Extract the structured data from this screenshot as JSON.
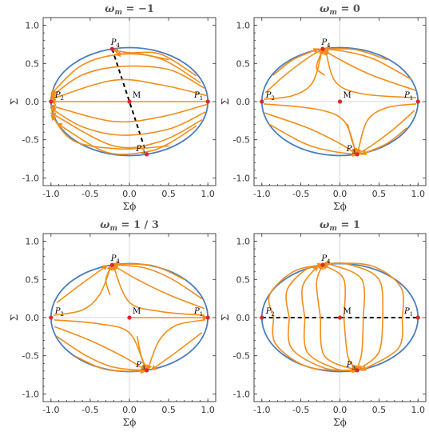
{
  "colors": {
    "boundary": "#4a7dbf",
    "flow": "#f28d1b",
    "point": "#e0262a",
    "dashed": "#000000"
  },
  "axes": {
    "xlabel": "Σϕ",
    "ylabel": "Σ",
    "xticks": [
      "-1.0",
      "-0.5",
      "0.0",
      "0.5",
      "1.0"
    ],
    "yticks": [
      "-1.0",
      "-0.5",
      "0.0",
      "0.5",
      "1.0"
    ],
    "xlim": [
      -1.1,
      1.1
    ],
    "ylim": [
      -1.1,
      1.1
    ]
  },
  "chart_data": [
    {
      "type": "line",
      "title": "ω_m = −1",
      "title_main": "ω",
      "title_sub": "m",
      "title_value": " = −1",
      "xlabel": "Σϕ",
      "ylabel": "Σ",
      "xlim": [
        -1.1,
        1.1
      ],
      "ylim": [
        -1.1,
        1.1
      ],
      "boundary": {
        "a": 1.0,
        "b": 0.707
      },
      "points": [
        {
          "name": "P",
          "sub": "1",
          "x": 1.0,
          "y": 0.0
        },
        {
          "name": "P",
          "sub": "2",
          "x": -1.0,
          "y": 0.0
        },
        {
          "name": "P",
          "sub": "3",
          "x": 0.22,
          "y": -0.69
        },
        {
          "name": "P",
          "sub": "4",
          "x": -0.22,
          "y": 0.69
        },
        {
          "name": "M",
          "sub": "",
          "x": 0.0,
          "y": 0.0
        }
      ],
      "dashed": [
        [
          -0.22,
          0.69
        ],
        [
          0.22,
          -0.69
        ]
      ],
      "trajectories": [
        [
          [
            0.98,
            0.0
          ],
          [
            0.5,
            0.0
          ],
          [
            -0.98,
            0.0
          ]
        ],
        [
          [
            0.98,
            0.08
          ],
          [
            0.4,
            0.22
          ],
          [
            -0.2,
            0.28
          ],
          [
            -0.98,
            0.04
          ]
        ],
        [
          [
            0.95,
            0.18
          ],
          [
            0.5,
            0.42
          ],
          [
            -0.1,
            0.46
          ],
          [
            -0.6,
            0.35
          ],
          [
            -0.98,
            0.08
          ]
        ],
        [
          [
            0.9,
            0.25
          ],
          [
            0.4,
            0.56
          ],
          [
            -0.1,
            0.62
          ],
          [
            -0.6,
            0.48
          ],
          [
            -0.98,
            0.12
          ]
        ],
        [
          [
            0.85,
            0.34
          ],
          [
            0.4,
            0.62
          ],
          [
            0.0,
            0.64
          ],
          [
            -0.18,
            0.67
          ]
        ],
        [
          [
            0.5,
            0.55
          ],
          [
            0.1,
            0.63
          ],
          [
            -0.15,
            0.62
          ]
        ],
        [
          [
            0.98,
            -0.04
          ],
          [
            0.4,
            -0.2
          ],
          [
            -0.2,
            -0.26
          ],
          [
            -0.98,
            -0.06
          ]
        ],
        [
          [
            0.96,
            -0.14
          ],
          [
            0.5,
            -0.36
          ],
          [
            -0.1,
            -0.44
          ],
          [
            -0.6,
            -0.33
          ],
          [
            -0.98,
            -0.1
          ]
        ],
        [
          [
            0.92,
            -0.24
          ],
          [
            0.4,
            -0.52
          ],
          [
            -0.2,
            -0.58
          ],
          [
            -0.98,
            -0.16
          ]
        ],
        [
          [
            0.5,
            -0.58
          ],
          [
            -0.1,
            -0.62
          ],
          [
            -0.7,
            -0.52
          ],
          [
            -0.98,
            -0.2
          ]
        ],
        [
          [
            0.85,
            -0.32
          ],
          [
            0.5,
            -0.55
          ],
          [
            0.2,
            -0.66
          ],
          [
            -0.3,
            -0.66
          ],
          [
            -0.9,
            -0.3
          ]
        ]
      ]
    },
    {
      "type": "line",
      "title": "ω_m = 0",
      "title_main": "ω",
      "title_sub": "m",
      "title_value": " = 0",
      "xlabel": "Σϕ",
      "ylabel": "Σ",
      "xlim": [
        -1.1,
        1.1
      ],
      "ylim": [
        -1.1,
        1.1
      ],
      "boundary": {
        "a": 1.0,
        "b": 0.707
      },
      "points": [
        {
          "name": "P",
          "sub": "1",
          "x": 1.0,
          "y": 0.0
        },
        {
          "name": "P",
          "sub": "2",
          "x": -1.0,
          "y": 0.0
        },
        {
          "name": "P",
          "sub": "3",
          "x": 0.22,
          "y": -0.69
        },
        {
          "name": "P",
          "sub": "4",
          "x": -0.22,
          "y": 0.69
        },
        {
          "name": "M",
          "sub": "",
          "x": 0.0,
          "y": 0.0
        }
      ],
      "dashed": [],
      "trajectories": [
        [
          [
            0.97,
            0.05
          ],
          [
            0.3,
            0.1
          ],
          [
            -0.05,
            0.25
          ],
          [
            -0.18,
            0.65
          ]
        ],
        [
          [
            0.96,
            0.15
          ],
          [
            0.4,
            0.35
          ],
          [
            0.0,
            0.55
          ],
          [
            -0.2,
            0.67
          ]
        ],
        [
          [
            0.9,
            0.3
          ],
          [
            0.45,
            0.55
          ],
          [
            0.1,
            0.65
          ],
          [
            -0.18,
            0.69
          ]
        ],
        [
          [
            0.6,
            0.55
          ],
          [
            0.2,
            0.68
          ],
          [
            -0.18,
            0.69
          ]
        ],
        [
          [
            -0.97,
            0.03
          ],
          [
            -0.6,
            0.08
          ],
          [
            -0.35,
            0.25
          ],
          [
            -0.23,
            0.66
          ]
        ],
        [
          [
            -0.95,
            0.12
          ],
          [
            -0.7,
            0.35
          ],
          [
            -0.4,
            0.58
          ],
          [
            -0.23,
            0.68
          ]
        ],
        [
          [
            -0.85,
            0.35
          ],
          [
            -0.6,
            0.55
          ],
          [
            -0.3,
            0.68
          ]
        ],
        [
          [
            -0.2,
            0.35
          ],
          [
            -0.3,
            0.45
          ],
          [
            -0.22,
            0.68
          ]
        ],
        [
          [
            -0.97,
            -0.03
          ],
          [
            -0.3,
            -0.1
          ],
          [
            0.05,
            -0.25
          ],
          [
            0.2,
            -0.65
          ]
        ],
        [
          [
            -0.96,
            -0.15
          ],
          [
            -0.4,
            -0.35
          ],
          [
            0.0,
            -0.55
          ],
          [
            0.2,
            -0.68
          ]
        ],
        [
          [
            -0.9,
            -0.3
          ],
          [
            -0.45,
            -0.55
          ],
          [
            -0.1,
            -0.65
          ],
          [
            0.2,
            -0.69
          ]
        ],
        [
          [
            0.97,
            -0.03
          ],
          [
            0.6,
            -0.08
          ],
          [
            0.35,
            -0.25
          ],
          [
            0.23,
            -0.66
          ]
        ],
        [
          [
            0.95,
            -0.12
          ],
          [
            0.7,
            -0.35
          ],
          [
            0.4,
            -0.58
          ],
          [
            0.23,
            -0.68
          ]
        ],
        [
          [
            0.85,
            -0.35
          ],
          [
            0.6,
            -0.55
          ],
          [
            0.3,
            -0.68
          ]
        ],
        [
          [
            0.1,
            -0.3
          ],
          [
            0.15,
            -0.5
          ],
          [
            0.21,
            -0.67
          ]
        ]
      ]
    },
    {
      "type": "line",
      "title": "ω_m = 1 / 3",
      "title_main": "ω",
      "title_sub": "m",
      "title_value": " = 1 / 3",
      "xlabel": "Σϕ",
      "ylabel": "Σ",
      "xlim": [
        -1.1,
        1.1
      ],
      "ylim": [
        -1.1,
        1.1
      ],
      "boundary": {
        "a": 1.0,
        "b": 0.707
      },
      "points": [
        {
          "name": "P",
          "sub": "1",
          "x": 1.0,
          "y": 0.0
        },
        {
          "name": "P",
          "sub": "2",
          "x": -1.0,
          "y": 0.0
        },
        {
          "name": "P",
          "sub": "3",
          "x": 0.22,
          "y": -0.69
        },
        {
          "name": "P",
          "sub": "4",
          "x": -0.22,
          "y": 0.69
        },
        {
          "name": "M",
          "sub": "",
          "x": 0.0,
          "y": 0.0
        }
      ],
      "dashed": [],
      "trajectories": [
        [
          [
            0.95,
            0.03
          ],
          [
            0.4,
            0.08
          ],
          [
            0.0,
            0.2
          ],
          [
            -0.2,
            0.66
          ]
        ],
        [
          [
            0.95,
            0.12
          ],
          [
            0.5,
            0.3
          ],
          [
            0.1,
            0.5
          ],
          [
            -0.2,
            0.68
          ]
        ],
        [
          [
            0.92,
            0.25
          ],
          [
            0.55,
            0.5
          ],
          [
            0.2,
            0.65
          ],
          [
            -0.18,
            0.69
          ]
        ],
        [
          [
            0.7,
            0.5
          ],
          [
            0.3,
            0.68
          ],
          [
            -0.18,
            0.7
          ]
        ],
        [
          [
            -0.96,
            0.03
          ],
          [
            -0.6,
            0.1
          ],
          [
            -0.38,
            0.3
          ],
          [
            -0.24,
            0.66
          ]
        ],
        [
          [
            -0.92,
            0.2
          ],
          [
            -0.6,
            0.45
          ],
          [
            -0.3,
            0.67
          ]
        ],
        [
          [
            -0.25,
            0.3
          ],
          [
            -0.3,
            0.5
          ],
          [
            -0.23,
            0.67
          ]
        ],
        [
          [
            -0.95,
            -0.03
          ],
          [
            -0.4,
            -0.08
          ],
          [
            0.0,
            -0.2
          ],
          [
            0.2,
            -0.66
          ]
        ],
        [
          [
            -0.95,
            -0.12
          ],
          [
            -0.5,
            -0.3
          ],
          [
            -0.1,
            -0.5
          ],
          [
            0.2,
            -0.68
          ]
        ],
        [
          [
            -0.92,
            -0.25
          ],
          [
            -0.55,
            -0.5
          ],
          [
            -0.2,
            -0.65
          ],
          [
            0.19,
            -0.69
          ]
        ],
        [
          [
            -0.7,
            -0.5
          ],
          [
            -0.3,
            -0.68
          ],
          [
            0.18,
            -0.7
          ]
        ],
        [
          [
            0.96,
            -0.03
          ],
          [
            0.6,
            -0.1
          ],
          [
            0.38,
            -0.3
          ],
          [
            0.24,
            -0.66
          ]
        ],
        [
          [
            0.92,
            -0.2
          ],
          [
            0.6,
            -0.45
          ],
          [
            0.3,
            -0.67
          ]
        ],
        [
          [
            0.1,
            -0.25
          ],
          [
            0.15,
            -0.5
          ],
          [
            0.22,
            -0.67
          ]
        ],
        [
          [
            0.0,
            0.0
          ],
          [
            0.5,
            0.0
          ],
          [
            0.97,
            0.0
          ]
        ]
      ]
    },
    {
      "type": "line",
      "title": "ω_m = 1",
      "title_main": "ω",
      "title_sub": "m",
      "title_value": " = 1",
      "xlabel": "Σϕ",
      "ylabel": "Σ",
      "xlim": [
        -1.1,
        1.1
      ],
      "ylim": [
        -1.1,
        1.1
      ],
      "boundary": {
        "a": 1.0,
        "b": 0.707
      },
      "points": [
        {
          "name": "P",
          "sub": "1",
          "x": 1.0,
          "y": 0.0
        },
        {
          "name": "P",
          "sub": "2",
          "x": -1.0,
          "y": 0.0
        },
        {
          "name": "P",
          "sub": "3",
          "x": 0.22,
          "y": -0.69
        },
        {
          "name": "P",
          "sub": "4",
          "x": -0.22,
          "y": 0.69
        },
        {
          "name": "M",
          "sub": "",
          "x": 0.0,
          "y": 0.0
        }
      ],
      "dashed": [
        [
          -1.0,
          0.0
        ],
        [
          1.0,
          0.0
        ]
      ],
      "trajectories": [
        [
          [
            -0.85,
            0.0
          ],
          [
            -0.9,
            0.3
          ],
          [
            -0.6,
            0.6
          ],
          [
            -0.25,
            0.69
          ]
        ],
        [
          [
            -0.85,
            0.0
          ],
          [
            -0.82,
            -0.35
          ],
          [
            -0.4,
            -0.65
          ],
          [
            0.2,
            -0.69
          ]
        ],
        [
          [
            -0.65,
            0.0
          ],
          [
            -0.68,
            0.35
          ],
          [
            -0.45,
            0.62
          ],
          [
            -0.24,
            0.69
          ]
        ],
        [
          [
            -0.65,
            0.0
          ],
          [
            -0.62,
            -0.4
          ],
          [
            -0.2,
            -0.66
          ],
          [
            0.2,
            -0.69
          ]
        ],
        [
          [
            -0.45,
            0.0
          ],
          [
            -0.48,
            0.4
          ],
          [
            -0.3,
            0.66
          ]
        ],
        [
          [
            -0.45,
            0.0
          ],
          [
            -0.42,
            -0.45
          ],
          [
            -0.05,
            -0.67
          ],
          [
            0.19,
            -0.69
          ]
        ],
        [
          [
            -0.25,
            0.0
          ],
          [
            -0.3,
            0.45
          ],
          [
            -0.23,
            0.67
          ]
        ],
        [
          [
            -0.25,
            0.0
          ],
          [
            -0.2,
            -0.5
          ],
          [
            0.18,
            -0.68
          ]
        ],
        [
          [
            0.05,
            0.0
          ],
          [
            0.05,
            0.5
          ],
          [
            -0.2,
            0.68
          ]
        ],
        [
          [
            0.05,
            0.0
          ],
          [
            0.1,
            -0.5
          ],
          [
            0.2,
            -0.67
          ]
        ],
        [
          [
            0.3,
            0.0
          ],
          [
            0.28,
            0.5
          ],
          [
            -0.1,
            0.69
          ],
          [
            -0.2,
            0.69
          ]
        ],
        [
          [
            0.3,
            0.0
          ],
          [
            0.28,
            -0.45
          ],
          [
            0.22,
            -0.67
          ]
        ],
        [
          [
            0.55,
            0.0
          ],
          [
            0.5,
            0.5
          ],
          [
            0.1,
            0.7
          ],
          [
            -0.2,
            0.7
          ]
        ],
        [
          [
            0.55,
            0.0
          ],
          [
            0.5,
            -0.45
          ],
          [
            0.25,
            -0.67
          ]
        ],
        [
          [
            0.8,
            0.0
          ],
          [
            0.78,
            0.4
          ],
          [
            0.4,
            0.68
          ],
          [
            -0.18,
            0.71
          ]
        ],
        [
          [
            0.8,
            0.0
          ],
          [
            0.75,
            -0.4
          ],
          [
            0.3,
            -0.68
          ]
        ]
      ]
    }
  ]
}
